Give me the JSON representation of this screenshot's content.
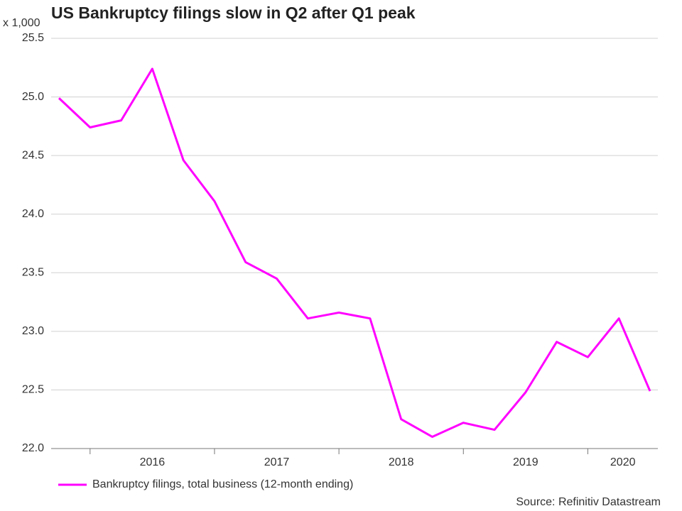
{
  "chart_data": {
    "type": "line",
    "title": "US Bankruptcy filings slow in Q2 after Q1 peak",
    "y_unit_label": "x 1,000",
    "source": "Source: Refinitiv Datastream",
    "categories": [
      null,
      null,
      null,
      "2016",
      null,
      null,
      null,
      "2017",
      null,
      null,
      null,
      "2018",
      null,
      null,
      null,
      "2019",
      null,
      null,
      "2020",
      null
    ],
    "series": [
      {
        "name": "Bankruptcy filings, total business (12-month ending)",
        "color": "#ff00ff",
        "values": [
          24.99,
          24.74,
          24.8,
          25.24,
          24.46,
          24.11,
          23.59,
          23.45,
          23.11,
          23.16,
          23.11,
          22.25,
          22.1,
          22.22,
          22.16,
          22.48,
          22.91,
          22.78,
          23.11,
          22.49
        ]
      }
    ],
    "ylim": [
      22,
      25.5
    ],
    "yticks": [
      {
        "value": 22,
        "label": "22.0"
      },
      22.5,
      {
        "value": 23,
        "label": "23.0"
      },
      23.5,
      {
        "value": 24,
        "label": "24.0"
      },
      24.5,
      {
        "value": 25,
        "label": "25.0"
      },
      25.5
    ],
    "grid": true
  }
}
